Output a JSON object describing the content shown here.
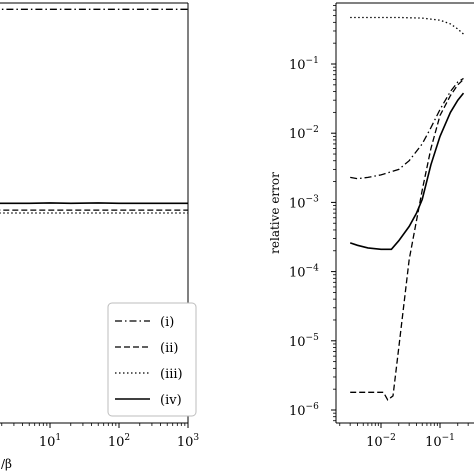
{
  "chart_data": [
    {
      "type": "line",
      "panel": "left",
      "xscale": "log",
      "xlim": [
        0.03,
        1000
      ],
      "yscale": "linear",
      "xticks": [
        {
          "value": 10,
          "base": "10",
          "exp": "1"
        },
        {
          "value": 100,
          "base": "10",
          "exp": "2"
        },
        {
          "value": 1000,
          "base": "10",
          "exp": "3"
        }
      ],
      "xlabel_visible": "/β",
      "legend": {
        "placement": "lower-right",
        "entries": [
          "(i)",
          "(ii)",
          "(iii)",
          "(iv)"
        ]
      },
      "series": [
        {
          "name": "(i)",
          "style": "dashdot",
          "x": [
            0.03,
            1000
          ],
          "y": [
            0.985,
            0.985
          ]
        },
        {
          "name": "(ii)",
          "style": "dashed",
          "x": [
            0.03,
            0.05,
            0.1,
            0.2,
            0.5,
            1,
            2,
            5,
            10,
            20,
            50,
            100,
            200,
            500,
            1000
          ],
          "y": [
            0.59,
            0.575,
            0.545,
            0.52,
            0.51,
            0.508,
            0.507,
            0.507,
            0.507,
            0.507,
            0.507,
            0.507,
            0.507,
            0.507,
            0.507
          ]
        },
        {
          "name": "(iii)",
          "style": "dotted",
          "x": [
            0.03,
            0.05,
            0.1,
            0.2,
            0.5,
            1,
            2,
            5,
            10,
            20,
            50,
            100,
            200,
            500,
            1000
          ],
          "y": [
            0.59,
            0.57,
            0.54,
            0.515,
            0.503,
            0.5,
            0.5,
            0.5,
            0.5,
            0.5,
            0.5,
            0.5,
            0.5,
            0.5,
            0.5
          ]
        },
        {
          "name": "(iv)",
          "style": "solid",
          "x": [
            0.03,
            0.05,
            0.1,
            0.2,
            0.5,
            1,
            2,
            5,
            10,
            20,
            50,
            100,
            200,
            500,
            1000
          ],
          "y": [
            0.6,
            0.58,
            0.555,
            0.535,
            0.526,
            0.524,
            0.523,
            0.523,
            0.524,
            0.523,
            0.524,
            0.523,
            0.523,
            0.523,
            0.523
          ]
        }
      ]
    },
    {
      "type": "line",
      "panel": "right",
      "xscale": "log",
      "yscale": "log",
      "xlim": [
        0.001,
        0.3
      ],
      "ylim": [
        6e-07,
        1
      ],
      "ylabel": "relative error",
      "xticks": [
        {
          "value": 0.01,
          "base": "10",
          "exp": "−2"
        },
        {
          "value": 0.1,
          "base": "10",
          "exp": "−1"
        }
      ],
      "yticks": [
        {
          "value": 1e-06,
          "base": "10",
          "exp": "−6"
        },
        {
          "value": 1e-05,
          "base": "10",
          "exp": "−5"
        },
        {
          "value": 0.0001,
          "base": "10",
          "exp": "−4"
        },
        {
          "value": 0.001,
          "base": "10",
          "exp": "−3"
        },
        {
          "value": 0.01,
          "base": "10",
          "exp": "−2"
        },
        {
          "value": 0.1,
          "base": "10",
          "exp": "−1"
        }
      ],
      "series": [
        {
          "name": "(i)",
          "style": "dashdot",
          "x": [
            0.003,
            0.004,
            0.006,
            0.01,
            0.02,
            0.03,
            0.05,
            0.07,
            0.1,
            0.15,
            0.2,
            0.25
          ],
          "y": [
            0.0023,
            0.0022,
            0.0023,
            0.0025,
            0.003,
            0.004,
            0.007,
            0.012,
            0.022,
            0.04,
            0.055,
            0.062
          ]
        },
        {
          "name": "(ii)",
          "style": "dashed",
          "x": [
            0.003,
            0.005,
            0.008,
            0.011,
            0.013,
            0.016,
            0.02,
            0.03,
            0.05,
            0.07,
            0.1,
            0.15,
            0.2,
            0.25
          ],
          "y": [
            1.8e-06,
            1.8e-06,
            1.8e-06,
            1.8e-06,
            1.4e-06,
            1.6e-06,
            8e-06,
            0.00015,
            0.0015,
            0.006,
            0.018,
            0.035,
            0.05,
            0.06
          ]
        },
        {
          "name": "(iii)",
          "style": "dotted",
          "x": [
            0.003,
            0.005,
            0.01,
            0.02,
            0.05,
            0.1,
            0.15,
            0.2,
            0.25
          ],
          "y": [
            0.47,
            0.47,
            0.47,
            0.47,
            0.46,
            0.43,
            0.38,
            0.32,
            0.27
          ]
        },
        {
          "name": "(iv)",
          "style": "solid",
          "x": [
            0.003,
            0.004,
            0.006,
            0.01,
            0.015,
            0.02,
            0.03,
            0.04,
            0.05,
            0.07,
            0.1,
            0.15,
            0.2,
            0.25
          ],
          "y": [
            0.00026,
            0.00024,
            0.00022,
            0.00021,
            0.00021,
            0.00028,
            0.00045,
            0.0007,
            0.0011,
            0.0035,
            0.009,
            0.02,
            0.03,
            0.038
          ]
        }
      ]
    }
  ]
}
